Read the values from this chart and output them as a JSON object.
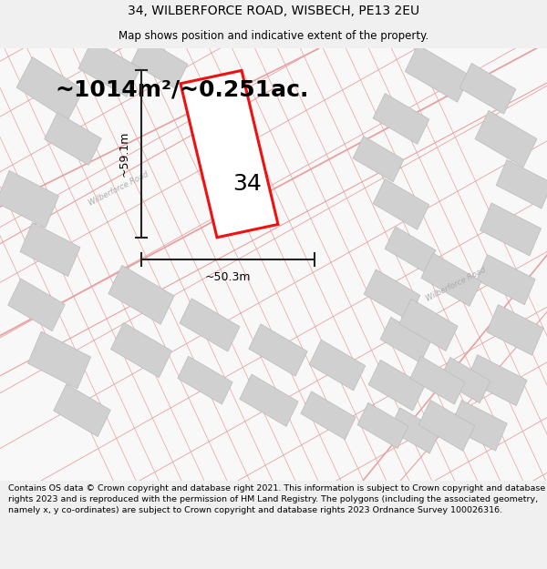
{
  "title_line1": "34, WILBERFORCE ROAD, WISBECH, PE13 2EU",
  "title_line2": "Map shows position and indicative extent of the property.",
  "area_text": "~1014m²/~0.251ac.",
  "number_label": "34",
  "dim_vertical": "~59.1m",
  "dim_horizontal": "~50.3m",
  "footer_text": "Contains OS data © Crown copyright and database right 2021. This information is subject to Crown copyright and database rights 2023 and is reproduced with the permission of HM Land Registry. The polygons (including the associated geometry, namely x, y co-ordinates) are subject to Crown copyright and database rights 2023 Ordnance Survey 100026316.",
  "bg_color": "#f0f0f0",
  "map_bg": "#f8f8f8",
  "highlight_color": "#ee1111",
  "road_color": "#e8a0a0",
  "building_color": "#d0d0d0",
  "road_label_color": "#aaaaaa",
  "dim_line_color": "#222222",
  "title_fontsize": 10,
  "subtitle_fontsize": 8.5,
  "area_fontsize": 18,
  "number_fontsize": 18,
  "dim_fontsize": 9,
  "footer_fontsize": 6.8
}
